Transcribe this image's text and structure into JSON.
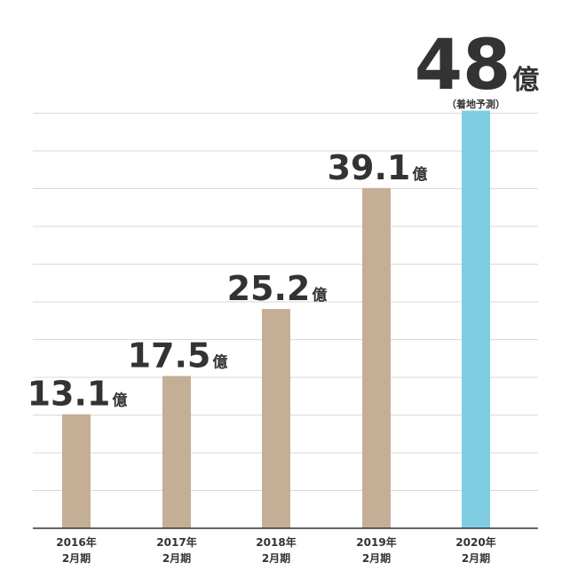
{
  "chart_data": {
    "type": "bar",
    "unit": "億",
    "categories": [
      {
        "line1": "2016年",
        "line2": "2月期"
      },
      {
        "line1": "2017年",
        "line2": "2月期"
      },
      {
        "line1": "2018年",
        "line2": "2月期"
      },
      {
        "line1": "2019年",
        "line2": "2月期"
      },
      {
        "line1": "2020年",
        "line2": "2月期"
      }
    ],
    "values": [
      13.1,
      17.5,
      25.2,
      39.1,
      48
    ],
    "value_labels": [
      "13.1",
      "17.5",
      "25.2",
      "39.1",
      "48"
    ],
    "forecast_note": "（着地予測）",
    "highlight_index": 4,
    "ylim": [
      0,
      50
    ],
    "grid": true,
    "colors": {
      "bar": "#c4ae96",
      "highlight": "#7ecde2",
      "grid": "#d9d9d9",
      "axis": "#333333",
      "text": "#333333"
    }
  }
}
